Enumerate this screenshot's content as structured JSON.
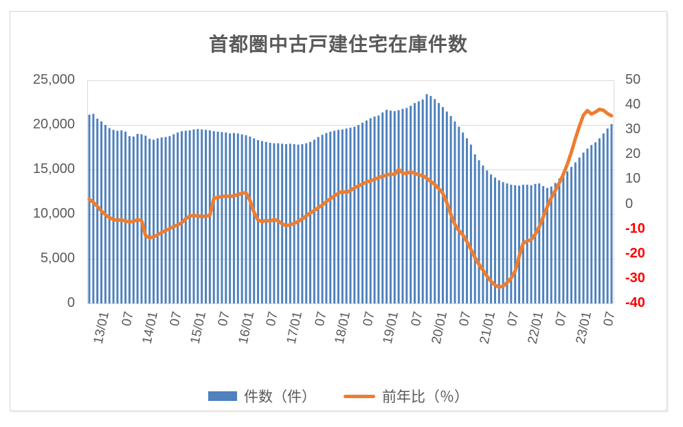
{
  "chart_data": {
    "type": "combo-bar-line",
    "title": "首都圏中古戸建住宅在庫件数",
    "x": [
      "13/01",
      "13/02",
      "13/03",
      "13/04",
      "13/05",
      "13/06",
      "13/07",
      "13/08",
      "13/09",
      "13/10",
      "13/11",
      "13/12",
      "14/01",
      "14/02",
      "14/03",
      "14/04",
      "14/05",
      "14/06",
      "14/07",
      "14/08",
      "14/09",
      "14/10",
      "14/11",
      "14/12",
      "15/01",
      "15/02",
      "15/03",
      "15/04",
      "15/05",
      "15/06",
      "15/07",
      "15/08",
      "15/09",
      "15/10",
      "15/11",
      "15/12",
      "16/01",
      "16/02",
      "16/03",
      "16/04",
      "16/05",
      "16/06",
      "16/07",
      "16/08",
      "16/09",
      "16/10",
      "16/11",
      "16/12",
      "17/01",
      "17/02",
      "17/03",
      "17/04",
      "17/05",
      "17/06",
      "17/07",
      "17/08",
      "17/09",
      "17/10",
      "17/11",
      "17/12",
      "18/01",
      "18/02",
      "18/03",
      "18/04",
      "18/05",
      "18/06",
      "18/07",
      "18/08",
      "18/09",
      "18/10",
      "18/11",
      "18/12",
      "19/01",
      "19/02",
      "19/03",
      "19/04",
      "19/05",
      "19/06",
      "19/07",
      "19/08",
      "19/09",
      "19/10",
      "19/11",
      "19/12",
      "20/01",
      "20/02",
      "20/03",
      "20/04",
      "20/05",
      "20/06",
      "20/07",
      "20/08",
      "20/09",
      "20/10",
      "20/11",
      "20/12",
      "21/01",
      "21/02",
      "21/03",
      "21/04",
      "21/05",
      "21/06",
      "21/07",
      "21/08",
      "21/09",
      "21/10",
      "21/11",
      "21/12",
      "22/01",
      "22/02",
      "22/03",
      "22/04",
      "22/05",
      "22/06",
      "22/07",
      "22/08",
      "22/09",
      "22/10",
      "22/11",
      "22/12",
      "23/01",
      "23/02",
      "23/03",
      "23/04",
      "23/05",
      "23/06",
      "23/07",
      "23/08",
      "23/09",
      "23/10",
      "23/11"
    ],
    "x_ticks": [
      {
        "index": 0,
        "label": "13/01"
      },
      {
        "index": 6,
        "label": "07"
      },
      {
        "index": 12,
        "label": "14/01"
      },
      {
        "index": 18,
        "label": "07"
      },
      {
        "index": 24,
        "label": "15/01"
      },
      {
        "index": 30,
        "label": "07"
      },
      {
        "index": 36,
        "label": "16/01"
      },
      {
        "index": 42,
        "label": "07"
      },
      {
        "index": 48,
        "label": "17/01"
      },
      {
        "index": 54,
        "label": "07"
      },
      {
        "index": 60,
        "label": "18/01"
      },
      {
        "index": 66,
        "label": "07"
      },
      {
        "index": 72,
        "label": "19/01"
      },
      {
        "index": 78,
        "label": "07"
      },
      {
        "index": 84,
        "label": "20/01"
      },
      {
        "index": 90,
        "label": "07"
      },
      {
        "index": 96,
        "label": "21/01"
      },
      {
        "index": 102,
        "label": "07"
      },
      {
        "index": 108,
        "label": "22/01"
      },
      {
        "index": 114,
        "label": "07"
      },
      {
        "index": 120,
        "label": "23/01"
      },
      {
        "index": 126,
        "label": "07"
      }
    ],
    "series": [
      {
        "name": "件数（件）",
        "type": "bar",
        "axis": "left",
        "color": "#4E81BD",
        "values": [
          21150,
          21250,
          20700,
          20400,
          20000,
          19650,
          19450,
          19350,
          19400,
          19250,
          18750,
          18700,
          19000,
          18950,
          18800,
          18450,
          18350,
          18500,
          18600,
          18650,
          18750,
          18950,
          19150,
          19300,
          19350,
          19400,
          19500,
          19550,
          19500,
          19450,
          19400,
          19300,
          19250,
          19200,
          19150,
          19050,
          19100,
          19050,
          18950,
          18850,
          18700,
          18500,
          18300,
          18200,
          18100,
          18000,
          17950,
          17950,
          17900,
          17850,
          17900,
          17850,
          17800,
          17850,
          17950,
          18100,
          18350,
          18650,
          18900,
          19100,
          19250,
          19350,
          19450,
          19500,
          19600,
          19700,
          19800,
          20000,
          20250,
          20500,
          20750,
          20950,
          21050,
          21400,
          21700,
          21600,
          21550,
          21650,
          21800,
          21900,
          22150,
          22450,
          22650,
          22850,
          23450,
          23250,
          22900,
          22450,
          22000,
          21500,
          21000,
          20400,
          19800,
          19150,
          18500,
          17800,
          16700,
          16050,
          15450,
          14900,
          14450,
          14100,
          13800,
          13600,
          13450,
          13300,
          13250,
          13200,
          13300,
          13300,
          13250,
          13400,
          13450,
          13150,
          12950,
          13100,
          13500,
          14000,
          14400,
          14800,
          15300,
          15800,
          16350,
          16900,
          17350,
          17750,
          18050,
          18500,
          19050,
          19600,
          20100
        ]
      },
      {
        "name": "前年比（％）",
        "type": "line",
        "axis": "right",
        "color": "#ED7D31",
        "values": [
          2.0,
          0.8,
          -0.8,
          -2.7,
          -4.2,
          -5.4,
          -6.1,
          -6.5,
          -6.2,
          -6.8,
          -7.1,
          -6.9,
          -6.2,
          -6.5,
          -12.6,
          -13.6,
          -13.1,
          -12.3,
          -11.4,
          -10.6,
          -9.8,
          -9.0,
          -8.3,
          -7.5,
          -5.8,
          -4.8,
          -4.5,
          -4.7,
          -5.0,
          -4.8,
          -4.4,
          2.4,
          2.8,
          3.1,
          3.3,
          3.1,
          3.4,
          3.9,
          4.4,
          4.7,
          1.5,
          -3.2,
          -6.4,
          -7.0,
          -6.5,
          -6.8,
          -6.1,
          -6.7,
          -7.9,
          -8.6,
          -8.3,
          -7.7,
          -6.9,
          -5.9,
          -4.7,
          -3.5,
          -2.5,
          -1.4,
          -0.3,
          1.1,
          2.2,
          3.4,
          4.4,
          5.2,
          4.7,
          5.6,
          6.6,
          7.4,
          8.2,
          9.0,
          9.4,
          10.1,
          10.7,
          11.3,
          11.8,
          12.2,
          12.0,
          14.1,
          12.6,
          12.4,
          13.1,
          12.5,
          11.9,
          11.5,
          10.5,
          9.2,
          8.0,
          6.3,
          4.4,
          0.6,
          -4.1,
          -8.1,
          -10.6,
          -12.4,
          -15.1,
          -18.2,
          -21.5,
          -24.2,
          -26.6,
          -29.0,
          -31.1,
          -32.6,
          -33.4,
          -33.0,
          -31.6,
          -29.8,
          -27.0,
          -21.0,
          -15.8,
          -14.8,
          -14.3,
          -12.1,
          -9.1,
          -5.1,
          -1.0,
          2.6,
          5.6,
          8.6,
          12.1,
          16.2,
          21.0,
          26.5,
          31.5,
          36.0,
          37.8,
          36.4,
          37.2,
          38.3,
          37.9,
          36.6,
          35.7
        ]
      }
    ],
    "left_axis": {
      "min": 0,
      "max": 25000,
      "step": 5000,
      "tick_labels": [
        "0",
        "5,000",
        "10,000",
        "15,000",
        "20,000",
        "25,000"
      ],
      "label_color": "#595959"
    },
    "right_axis": {
      "min": -40,
      "max": 50,
      "step": 10,
      "tick_labels": [
        "50",
        "40",
        "30",
        "20",
        "10",
        "0",
        "-10",
        "-20",
        "-30",
        "-40"
      ],
      "label_color": "#595959",
      "negative_label_color": "#FF0000"
    },
    "grid_color": "#D9D9D9",
    "legend_position": "bottom",
    "legend": [
      {
        "label": "件数（件）",
        "swatch": "bar",
        "color": "#4E81BD"
      },
      {
        "label": "前年比（％）",
        "swatch": "line",
        "color": "#ED7D31"
      }
    ]
  }
}
